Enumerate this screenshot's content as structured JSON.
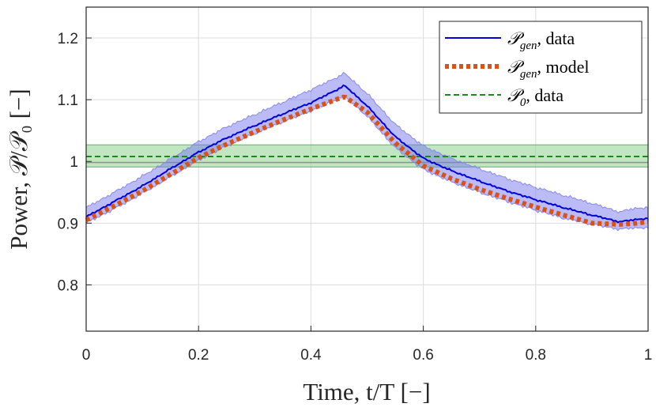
{
  "chart_data": {
    "type": "line",
    "xlabel": "Time, t/T [−]",
    "ylabel": "Power, 𝒫/𝒫₀ [−]",
    "xlim": [
      0,
      1
    ],
    "ylim": [
      0.725,
      1.25
    ],
    "xticks": [
      0,
      0.2,
      0.4,
      0.6,
      0.8,
      1
    ],
    "xtick_labels": [
      "0",
      "0.2",
      "0.4",
      "0.6",
      "0.8",
      "1"
    ],
    "yticks": [
      0.8,
      0.9,
      1.0,
      1.1,
      1.2
    ],
    "ytick_labels": [
      "0.8",
      "0.9",
      "1",
      "1.1",
      "1.2"
    ],
    "grid": true,
    "legend_position": "top-right",
    "series": [
      {
        "name": "P_gen, data",
        "legend_symbol": "𝒫",
        "legend_subscript": "gen",
        "legend_text": ", data",
        "style": "solid",
        "color": "#0000dd",
        "band_color": "#7777ee",
        "x": [
          0,
          0.05,
          0.1,
          0.15,
          0.2,
          0.25,
          0.3,
          0.35,
          0.4,
          0.45,
          0.46,
          0.5,
          0.55,
          0.6,
          0.65,
          0.7,
          0.75,
          0.8,
          0.85,
          0.9,
          0.95,
          0.97,
          1.0
        ],
        "values": [
          0.91,
          0.935,
          0.96,
          0.988,
          1.015,
          1.038,
          1.058,
          1.077,
          1.095,
          1.118,
          1.123,
          1.09,
          1.04,
          1.005,
          0.985,
          0.968,
          0.952,
          0.938,
          0.925,
          0.913,
          0.902,
          0.905,
          0.908
        ],
        "band_lower": [
          0.9,
          0.923,
          0.948,
          0.975,
          1.002,
          1.025,
          1.045,
          1.064,
          1.082,
          1.102,
          1.106,
          1.073,
          1.022,
          0.987,
          0.967,
          0.95,
          0.935,
          0.921,
          0.908,
          0.898,
          0.89,
          0.892,
          0.893
        ],
        "band_upper": [
          0.925,
          0.95,
          0.976,
          1.004,
          1.032,
          1.056,
          1.076,
          1.096,
          1.116,
          1.138,
          1.143,
          1.11,
          1.06,
          1.025,
          1.005,
          0.988,
          0.972,
          0.958,
          0.945,
          0.932,
          0.918,
          0.923,
          0.926
        ]
      },
      {
        "name": "P_gen, model",
        "legend_symbol": "𝒫",
        "legend_subscript": "gen",
        "legend_text": ", model",
        "style": "dotted",
        "color": "#d95319",
        "x": [
          0,
          0.05,
          0.1,
          0.15,
          0.2,
          0.25,
          0.3,
          0.35,
          0.4,
          0.45,
          0.46,
          0.5,
          0.55,
          0.6,
          0.65,
          0.7,
          0.75,
          0.8,
          0.85,
          0.9,
          0.95,
          0.97,
          1.0
        ],
        "values": [
          0.905,
          0.928,
          0.952,
          0.979,
          1.006,
          1.028,
          1.048,
          1.067,
          1.085,
          1.102,
          1.105,
          1.08,
          1.03,
          0.993,
          0.972,
          0.955,
          0.94,
          0.926,
          0.913,
          0.9,
          0.898,
          0.899,
          0.902
        ]
      },
      {
        "name": "P_0, data",
        "legend_symbol": "𝒫",
        "legend_subscript": "0",
        "legend_text": ", data",
        "style": "dashed",
        "color": "#1a8a1a",
        "band_color": "#8fd18f",
        "x": [
          0,
          1
        ],
        "values": [
          1.008,
          1.008
        ],
        "band_lower": [
          0.991,
          0.991
        ],
        "band_upper": [
          1.027,
          1.027
        ],
        "reference_line": 0.998
      }
    ]
  }
}
